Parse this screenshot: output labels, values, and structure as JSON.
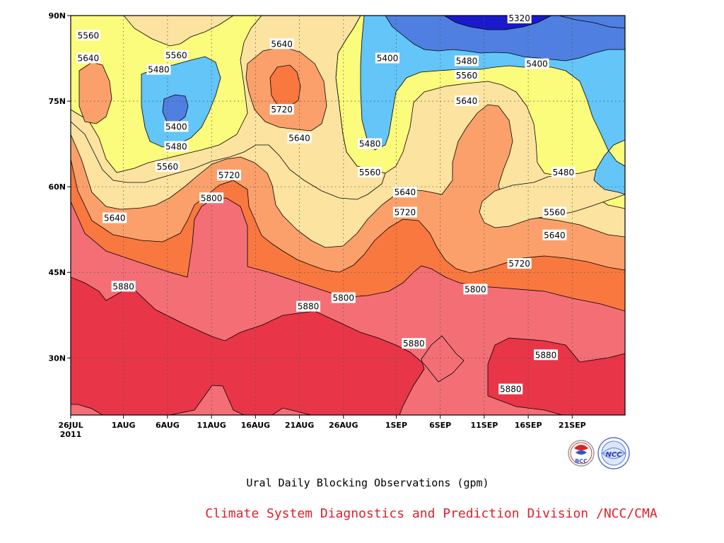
{
  "chart_data": {
    "type": "heatmap",
    "subtype": "filled-contour",
    "title": "Ural Daily Blocking Observations (gpm)",
    "credit": "Climate System Diagnostics and Prediction Division /NCC/CMA",
    "logos": [
      "BCC",
      "NCC"
    ],
    "x_axis": {
      "ticks": [
        "26JUL",
        "1AUG",
        "6AUG",
        "11AUG",
        "16AUG",
        "21AUG",
        "26AUG",
        "1SEP",
        "6SEP",
        "11SEP",
        "16SEP",
        "21SEP"
      ],
      "year_label": "2011",
      "range": [
        "2011-07-26",
        "2011-09-27"
      ]
    },
    "y_axis": {
      "ticks": [
        "90N",
        "75N",
        "60N",
        "45N",
        "30N"
      ],
      "range": [
        20,
        90
      ]
    },
    "contour_levels": [
      5320,
      5400,
      5480,
      5560,
      5640,
      5720,
      5800,
      5880
    ],
    "level_colors": {
      "below_5320": "#1a1acc",
      "5320_5400": "#4f7fe0",
      "5400_5480": "#63c5f8",
      "5480_5560": "#fbfb7c",
      "5560_5640": "#fce3a0",
      "5640_5720": "#fba06a",
      "5720_5800": "#f9783f",
      "5800_5880": "#f46e76",
      "above_5880": "#e83548"
    },
    "contour_labels": [
      {
        "value": "5320",
        "date": "2011-09-15",
        "lat": 89.5
      },
      {
        "value": "5400",
        "date": "2011-08-31",
        "lat": 82.5
      },
      {
        "value": "5400",
        "date": "2011-09-17",
        "lat": 81.5
      },
      {
        "value": "5480",
        "date": "2011-09-09",
        "lat": 82.0
      },
      {
        "value": "5560",
        "date": "2011-09-09",
        "lat": 79.5
      },
      {
        "value": "5640",
        "date": "2011-09-09",
        "lat": 75.0
      },
      {
        "value": "5560",
        "date": "2011-07-28",
        "lat": 86.5
      },
      {
        "value": "5640",
        "date": "2011-07-28",
        "lat": 82.5
      },
      {
        "value": "5560",
        "date": "2011-08-07",
        "lat": 83.0
      },
      {
        "value": "5480",
        "date": "2011-08-05",
        "lat": 80.5
      },
      {
        "value": "5400",
        "date": "2011-08-07",
        "lat": 70.5
      },
      {
        "value": "5480",
        "date": "2011-08-07",
        "lat": 67.0
      },
      {
        "value": "5560",
        "date": "2011-08-06",
        "lat": 63.5
      },
      {
        "value": "5640",
        "date": "2011-08-19",
        "lat": 85.0
      },
      {
        "value": "5720",
        "date": "2011-08-19",
        "lat": 73.5
      },
      {
        "value": "5640",
        "date": "2011-08-21",
        "lat": 68.5
      },
      {
        "value": "5480",
        "date": "2011-08-29",
        "lat": 67.5
      },
      {
        "value": "5560",
        "date": "2011-08-29",
        "lat": 62.5
      },
      {
        "value": "5640",
        "date": "2011-09-02",
        "lat": 59.0
      },
      {
        "value": "5720",
        "date": "2011-09-02",
        "lat": 55.5
      },
      {
        "value": "5720",
        "date": "2011-08-13",
        "lat": 62.0
      },
      {
        "value": "5800",
        "date": "2011-08-11",
        "lat": 58.0
      },
      {
        "value": "5640",
        "date": "2011-07-31",
        "lat": 54.5
      },
      {
        "value": "5480",
        "date": "2011-09-20",
        "lat": 62.5
      },
      {
        "value": "5560",
        "date": "2011-09-19",
        "lat": 55.5
      },
      {
        "value": "5640",
        "date": "2011-09-19",
        "lat": 51.5
      },
      {
        "value": "5720",
        "date": "2011-09-15",
        "lat": 46.5
      },
      {
        "value": "5800",
        "date": "2011-09-10",
        "lat": 42.0
      },
      {
        "value": "5800",
        "date": "2011-08-26",
        "lat": 40.5
      },
      {
        "value": "5880",
        "date": "2011-08-01",
        "lat": 42.5
      },
      {
        "value": "5880",
        "date": "2011-08-22",
        "lat": 39.0
      },
      {
        "value": "5880",
        "date": "2011-09-03",
        "lat": 32.5
      },
      {
        "value": "5880",
        "date": "2011-09-18",
        "lat": 30.5
      },
      {
        "value": "5880",
        "date": "2011-09-14",
        "lat": 24.5
      }
    ]
  }
}
